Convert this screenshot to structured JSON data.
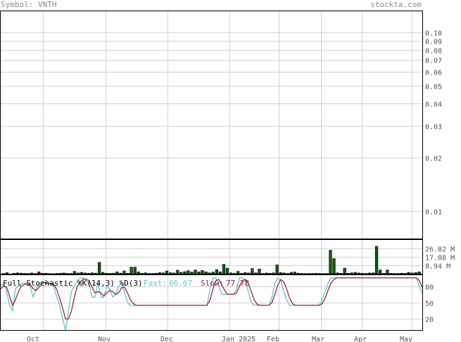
{
  "header": {
    "symbol_label": "Symbol: VNTH",
    "brand": "stockta.com"
  },
  "colors": {
    "grid": "#d2d2d2",
    "frame": "#000000",
    "volume_up": "#006400",
    "volume_down": "#c00000",
    "fast_line": "#5bc8c8",
    "slow_line": "#a0204a",
    "tick_text": "#555555"
  },
  "chart_data": [
    {
      "type": "line",
      "title": "",
      "scale": "log",
      "ylim": [
        0.0075,
        0.1
      ],
      "y_tick_labels": [
        "0.10",
        "0.09",
        "0.08",
        "0.07",
        "0.06",
        "0.05",
        "0.04",
        "0.03",
        "0.02",
        "0.01"
      ],
      "y_tick_values": [
        0.1,
        0.09,
        0.08,
        0.07,
        0.06,
        0.05,
        0.04,
        0.03,
        0.02,
        0.01
      ],
      "series": [],
      "grid": true
    },
    {
      "type": "bar",
      "title": "",
      "ylabel": "",
      "y_tick_labels": [
        "26.82 M",
        "17.88 M",
        "8.94 M"
      ],
      "y_tick_values": [
        26.82,
        17.88,
        8.94
      ],
      "ylim": [
        0,
        35.8
      ],
      "x_labels": [
        "Oct",
        "Nov",
        "Dec",
        "Jan 2025",
        "Feb",
        "Mar",
        "Apr",
        "May"
      ],
      "values": [
        0.3,
        1.1,
        0,
        0.5,
        1,
        0.6,
        0.4,
        0.3,
        0.8,
        0.3,
        2,
        0.5,
        0.6,
        0.3,
        0.1,
        0.4,
        0.6,
        0.8,
        0.4,
        0.3,
        2.5,
        0.8,
        1.5,
        0.8,
        0.5,
        1,
        0.7,
        12,
        1.5,
        0.5,
        0.4,
        0.6,
        2,
        0.6,
        3,
        0.5,
        7,
        7,
        2,
        0.5,
        1,
        0.3,
        0.4,
        0.6,
        1.2,
        1,
        3,
        1.1,
        0.8,
        3.8,
        1.5,
        2.2,
        3.2,
        1.8,
        4,
        2,
        3.5,
        2,
        1,
        1.8,
        4.5,
        2,
        10,
        6,
        1,
        0.5,
        2.5,
        0.5,
        1.3,
        0.8,
        5.5,
        1,
        5,
        0.4,
        0.8,
        0.5,
        1,
        9.5,
        1.2,
        0.8,
        0.4,
        1.5,
        1.8,
        0.5,
        0.3,
        0.2,
        0.4,
        0.3,
        0.5,
        0.3,
        0.2,
        0.3,
        25,
        16,
        1,
        0.5,
        6,
        0.5,
        1,
        1.5,
        0.8,
        0.5,
        0.3,
        0.8,
        1,
        29,
        4,
        0.5,
        4,
        0.5,
        0.3,
        0.4,
        0.5,
        0.4,
        1.5,
        0.8,
        1.2,
        2
      ],
      "down_days": [
        6,
        10
      ],
      "grid": true
    },
    {
      "type": "line",
      "title": "Full Stochastic %K(14,3) %D(3)",
      "ylim": [
        0,
        100
      ],
      "y_tick_labels": [
        "80",
        "50",
        "20"
      ],
      "y_tick_values": [
        80,
        50,
        20
      ],
      "x_labels": [
        "Oct",
        "Nov",
        "Dec",
        "Jan 2025",
        "Feb",
        "Mar",
        "Apr",
        "May"
      ],
      "series": [
        {
          "name": "Fast",
          "last_label": "66.67",
          "values": [
            80,
            85,
            70,
            45,
            35,
            75,
            80,
            85,
            85,
            85,
            80,
            60,
            75,
            85,
            88,
            85,
            85,
            85,
            80,
            60,
            45,
            20,
            0,
            35,
            70,
            80,
            90,
            95,
            95,
            90,
            85,
            60,
            60,
            85,
            60,
            60,
            80,
            75,
            60,
            65,
            80,
            85,
            70,
            50,
            45,
            45,
            45,
            45,
            45,
            45,
            45,
            45,
            45,
            45,
            45,
            45,
            45,
            45,
            45,
            45,
            45,
            45,
            45,
            45,
            45,
            45,
            45,
            45,
            45,
            45,
            45,
            75,
            95,
            95,
            80,
            65,
            65,
            65,
            65,
            65,
            75,
            95,
            95,
            90,
            70,
            50,
            45,
            45,
            45,
            45,
            45,
            45,
            60,
            85,
            95,
            90,
            70,
            55,
            45,
            45,
            45,
            45,
            45,
            45,
            45,
            45,
            45,
            45,
            45,
            55,
            70,
            85,
            95,
            95,
            95,
            95,
            95,
            95,
            95,
            95,
            95,
            95,
            95,
            95,
            95,
            95,
            95,
            95,
            95,
            95,
            95,
            95,
            95,
            95,
            95,
            95,
            95,
            95,
            95,
            95,
            95,
            95,
            80,
            66.67
          ]
        },
        {
          "name": "Slow",
          "last_label": "77.78",
          "values": [
            75,
            80,
            78,
            62,
            45,
            55,
            70,
            80,
            83,
            84,
            83,
            75,
            72,
            78,
            85,
            86,
            85,
            85,
            83,
            74,
            58,
            40,
            20,
            20,
            35,
            60,
            80,
            88,
            93,
            93,
            90,
            78,
            68,
            70,
            68,
            62,
            68,
            72,
            70,
            65,
            68,
            77,
            78,
            68,
            55,
            48,
            45,
            45,
            45,
            45,
            45,
            45,
            45,
            45,
            45,
            45,
            45,
            45,
            45,
            45,
            45,
            45,
            45,
            45,
            45,
            45,
            45,
            45,
            45,
            45,
            45,
            55,
            75,
            90,
            92,
            82,
            72,
            65,
            65,
            65,
            68,
            80,
            90,
            92,
            85,
            70,
            55,
            47,
            45,
            45,
            45,
            45,
            50,
            65,
            82,
            92,
            88,
            75,
            58,
            48,
            45,
            45,
            45,
            45,
            45,
            45,
            45,
            45,
            45,
            48,
            57,
            72,
            85,
            92,
            95,
            95,
            95,
            95,
            95,
            95,
            95,
            95,
            95,
            95,
            95,
            95,
            95,
            95,
            95,
            95,
            95,
            95,
            95,
            95,
            95,
            95,
            95,
            95,
            95,
            95,
            95,
            95,
            90,
            77.78
          ]
        }
      ],
      "grid": true,
      "legend": "top-left"
    }
  ]
}
